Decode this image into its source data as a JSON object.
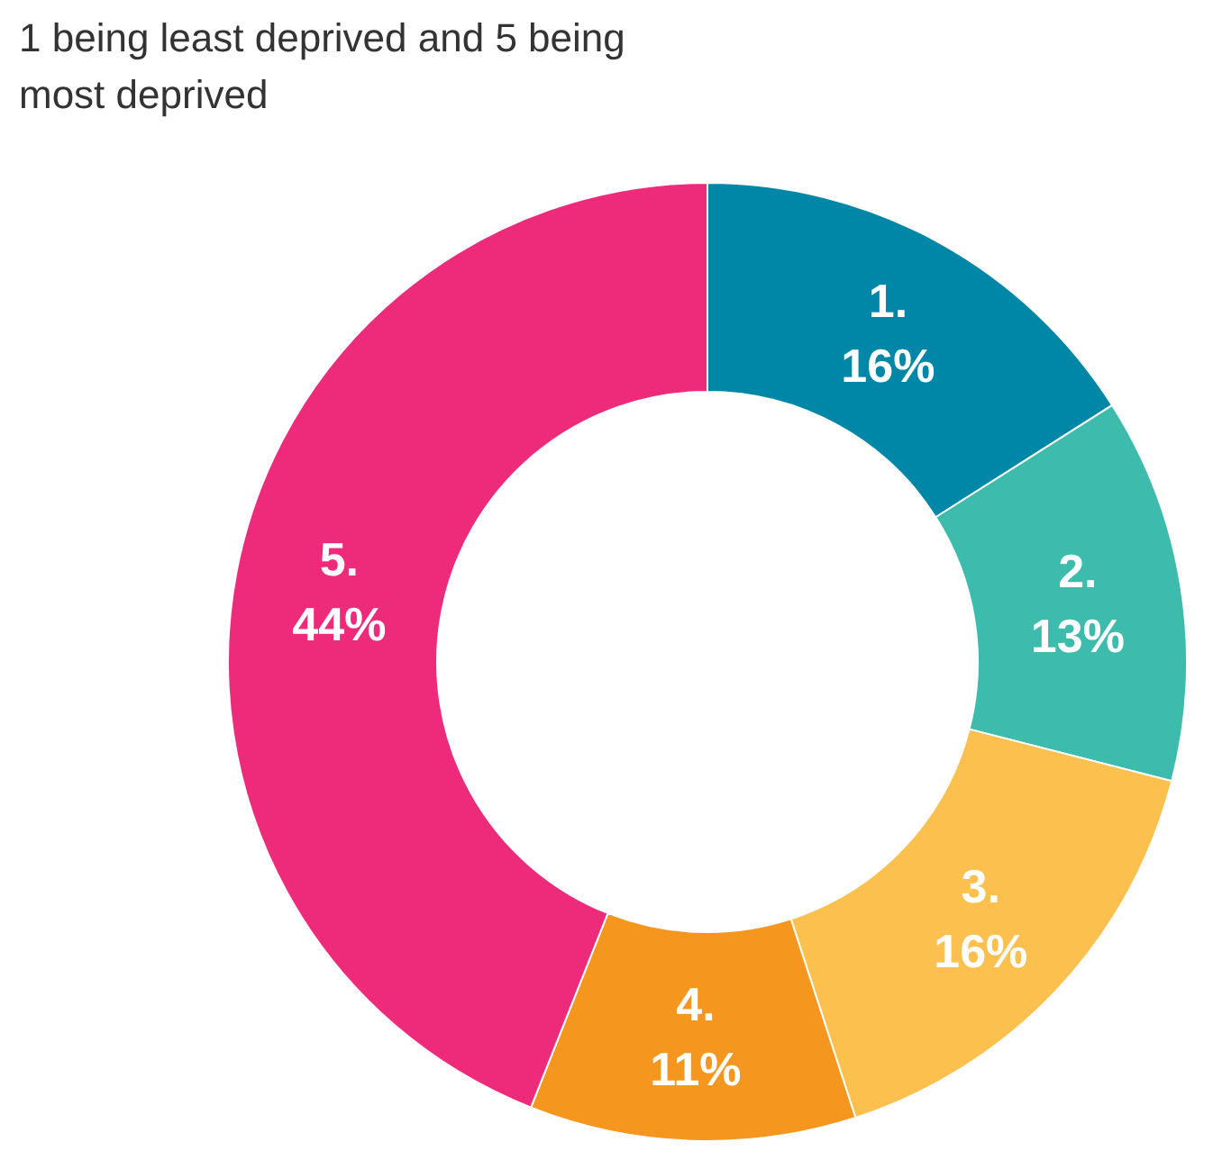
{
  "chart_data": {
    "type": "donut",
    "title": "1 being least deprived and 5 being\nmost deprived",
    "categories": [
      "1.",
      "2.",
      "3.",
      "4.",
      "5."
    ],
    "values": [
      16,
      13,
      16,
      11,
      44
    ],
    "value_labels": [
      "16%",
      "13%",
      "16%",
      "11%",
      "44%"
    ],
    "colors": [
      "#0087a8",
      "#3dbcae",
      "#fcc04f",
      "#f5961f",
      "#ee2a7b"
    ]
  }
}
